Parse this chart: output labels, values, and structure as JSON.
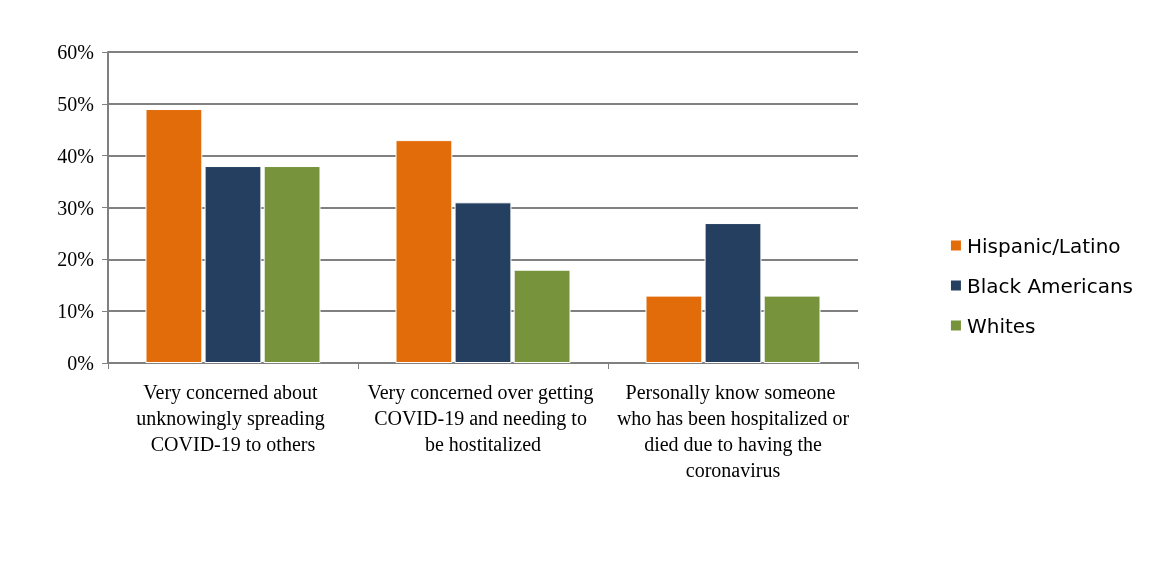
{
  "chart_data": {
    "type": "bar",
    "categories": [
      "Very concerned about unknowingly spreading COVID-19 to others",
      "Very concerned over getting COVID-19 and needing to be hostitalized",
      "Personally know someone who has been hospitalized or died due to having the coronavirus"
    ],
    "series": [
      {
        "name": "Hispanic/Latino",
        "color": "#e36c0a",
        "values": [
          49,
          43,
          13
        ]
      },
      {
        "name": "Black Americans",
        "color": "#243f60",
        "values": [
          38,
          31,
          27
        ]
      },
      {
        "name": "Whites",
        "color": "#77933c",
        "values": [
          38,
          18,
          13
        ]
      }
    ],
    "ylim": [
      0,
      60
    ],
    "yticks": [
      {
        "value": 0,
        "label": "0%"
      },
      {
        "value": 10,
        "label": "10%"
      },
      {
        "value": 20,
        "label": "20%"
      },
      {
        "value": 30,
        "label": "30%"
      },
      {
        "value": 40,
        "label": "40%"
      },
      {
        "value": 50,
        "label": "50%"
      },
      {
        "value": 60,
        "label": "60%"
      }
    ],
    "grid": "y",
    "legend": "right"
  }
}
